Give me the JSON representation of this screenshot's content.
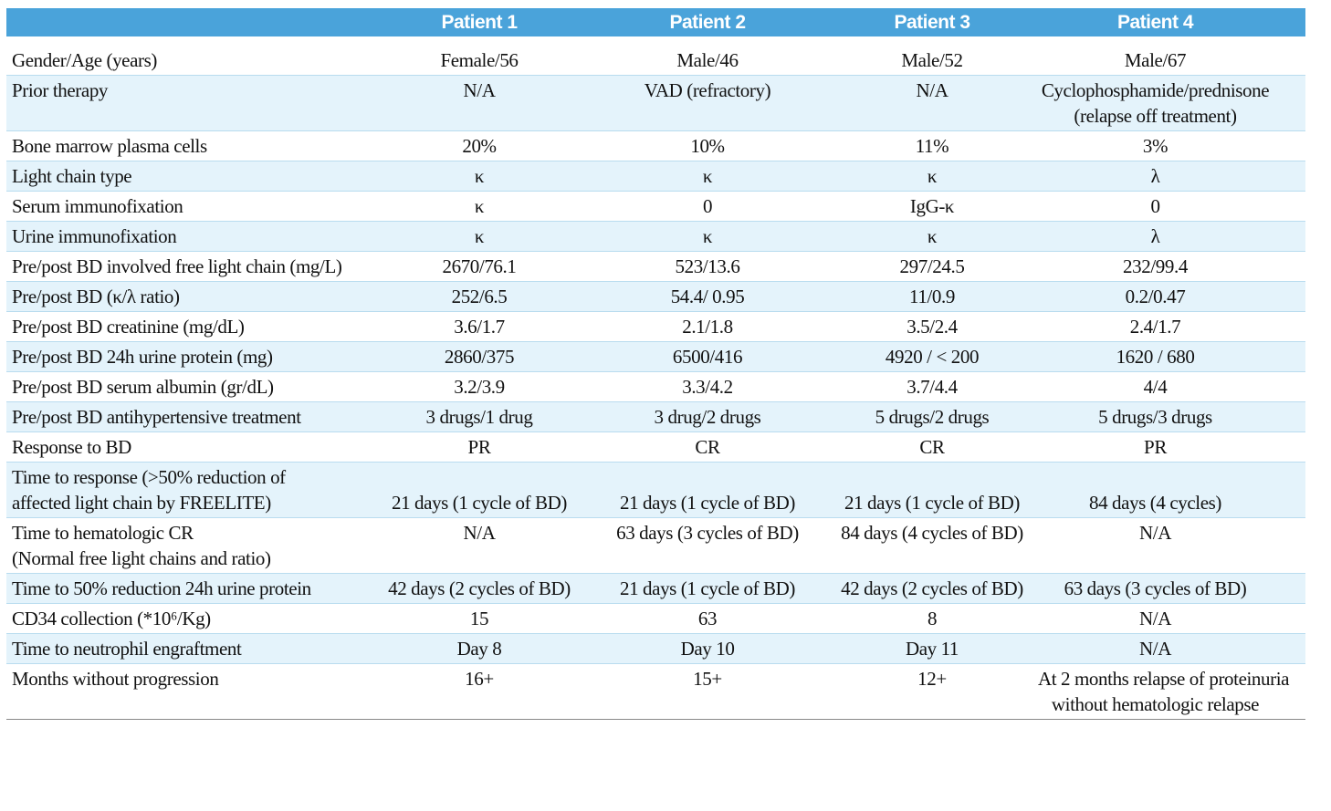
{
  "table": {
    "columns": [
      "Patient 1",
      "Patient 2",
      "Patient 3",
      "Patient 4"
    ],
    "rows": [
      {
        "label": "Gender/Age (years)",
        "cells": [
          "Female/56",
          "Male/46",
          "Male/52",
          "Male/67"
        ]
      },
      {
        "label": "Prior therapy",
        "cells": [
          "N/A",
          "VAD (refractory)",
          "N/A",
          [
            "Cyclophosphamide/prednisone",
            "(relapse off treatment)"
          ]
        ]
      },
      {
        "label": "Bone marrow plasma cells",
        "cells": [
          "20%",
          "10%",
          "11%",
          "3%"
        ]
      },
      {
        "label": "Light chain type",
        "cells": [
          "κ",
          "κ",
          "κ",
          "λ"
        ]
      },
      {
        "label": "Serum immunofixation",
        "cells": [
          "κ",
          "0",
          "IgG-κ",
          "0"
        ]
      },
      {
        "label": "Urine immunofixation",
        "cells": [
          "κ",
          "κ",
          "κ",
          "λ"
        ]
      },
      {
        "label": "Pre/post BD involved free light chain (mg/L)",
        "cells": [
          "2670/76.1",
          "523/13.6",
          "297/24.5",
          "232/99.4"
        ]
      },
      {
        "label": "Pre/post BD (κ/λ ratio)",
        "cells": [
          "252/6.5",
          "54.4/ 0.95",
          "11/0.9",
          "0.2/0.47"
        ]
      },
      {
        "label": "Pre/post BD creatinine (mg/dL)",
        "cells": [
          "3.6/1.7",
          "2.1/1.8",
          "3.5/2.4",
          "2.4/1.7"
        ]
      },
      {
        "label": "Pre/post BD 24h urine protein (mg)",
        "cells": [
          "2860/375",
          "6500/416",
          "4920 / < 200",
          "1620 / 680"
        ]
      },
      {
        "label": "Pre/post BD serum albumin (gr/dL)",
        "cells": [
          "3.2/3.9",
          "3.3/4.2",
          "3.7/4.4",
          "4/4"
        ]
      },
      {
        "label": "Pre/post BD antihypertensive treatment",
        "cells": [
          "3 drugs/1 drug",
          "3 drug/2 drugs",
          "5 drugs/2 drugs",
          "5 drugs/3 drugs"
        ]
      },
      {
        "label": "Response to BD",
        "cells": [
          "PR",
          "CR",
          "CR",
          "PR"
        ]
      },
      {
        "label": [
          "Time to response (>50% reduction of",
          "affected light chain by FREELITE)"
        ],
        "cells": [
          "21 days (1 cycle of BD)",
          "21 days (1 cycle of BD)",
          "21 days (1 cycle of BD)",
          "84 days (4 cycles)"
        ]
      },
      {
        "label": [
          "Time to hematologic CR",
          "(Normal free light chains and ratio)"
        ],
        "cells": [
          "N/A",
          "63 days (3 cycles of BD)",
          "84 days (4 cycles of BD)",
          "N/A"
        ]
      },
      {
        "label": "Time to 50% reduction 24h urine protein",
        "cells": [
          "42 days (2 cycles of BD)",
          "21 days (1 cycle of BD)",
          "42 days (2 cycles of BD)",
          "63 days (3 cycles of BD)"
        ]
      },
      {
        "label": "CD34 collection (*10⁶/Kg)",
        "cells": [
          "15",
          "63",
          "8",
          "N/A"
        ]
      },
      {
        "label": "Time to neutrophil engraftment",
        "cells": [
          "Day 8",
          "Day 10",
          "Day 11",
          "N/A"
        ]
      },
      {
        "label": "Months without progression",
        "cells": [
          "16+",
          "15+",
          "12+",
          [
            "At 2 months relapse of proteinuria",
            "without hematologic relapse"
          ]
        ]
      }
    ]
  }
}
